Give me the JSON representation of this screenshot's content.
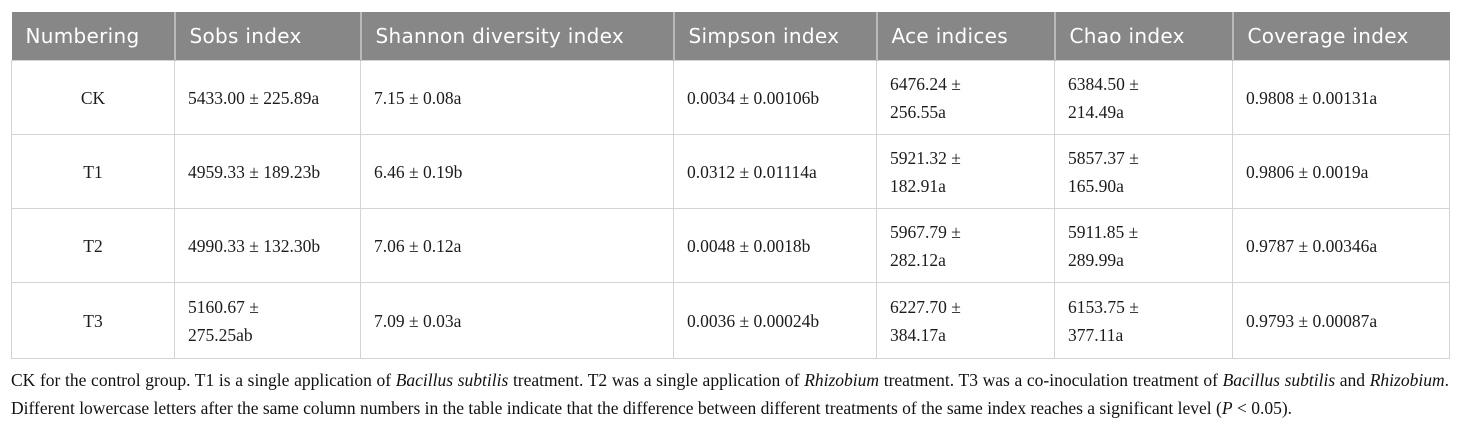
{
  "colors": {
    "header_bg": "#878787",
    "header_text": "#ffffff",
    "header_divider": "#b9b9b9",
    "body_border": "#d4d4d4",
    "body_text": "#1c1c1c"
  },
  "table": {
    "columns": [
      "Numbering",
      "Sobs index",
      "Shannon diversity index",
      "Simpson index",
      "Ace indices",
      "Chao index",
      "Coverage index"
    ],
    "rows": [
      {
        "cells": [
          "CK",
          "5433.00 ± 225.89a",
          "7.15 ± 0.08a",
          "0.0034 ± 0.00106b",
          [
            "6476.24 ±",
            "256.55a"
          ],
          [
            "6384.50 ±",
            "214.49a"
          ],
          "0.9808 ± 0.00131a"
        ]
      },
      {
        "cells": [
          "T1",
          "4959.33 ± 189.23b",
          "6.46 ± 0.19b",
          "0.0312 ± 0.01114a",
          [
            "5921.32 ±",
            "182.91a"
          ],
          [
            "5857.37 ±",
            "165.90a"
          ],
          "0.9806 ± 0.0019a"
        ]
      },
      {
        "cells": [
          "T2",
          "4990.33 ± 132.30b",
          "7.06 ± 0.12a",
          "0.0048 ± 0.0018b",
          [
            "5967.79 ±",
            "282.12a"
          ],
          [
            "5911.85 ±",
            "289.99a"
          ],
          "0.9787 ± 0.00346a"
        ]
      },
      {
        "cells": [
          "T3",
          [
            "5160.67 ±",
            "275.25ab"
          ],
          "7.09 ± 0.03a",
          "0.0036 ± 0.00024b",
          [
            "6227.70 ±",
            "384.17a"
          ],
          [
            "6153.75 ±",
            "377.11a"
          ],
          "0.9793 ± 0.00087a"
        ]
      }
    ]
  },
  "footnote": {
    "segments": [
      {
        "text": "CK for the control group. T1 is a single application of "
      },
      {
        "text": "Bacillus subtilis",
        "italic": true
      },
      {
        "text": " treatment. T2 was a single application of "
      },
      {
        "text": "Rhizobium",
        "italic": true
      },
      {
        "text": " treatment. T3 was a co-inoculation treatment of "
      },
      {
        "text": "Bacillus subtilis",
        "italic": true
      },
      {
        "text": " and "
      },
      {
        "text": "Rhizobium",
        "italic": true
      },
      {
        "text": ". Different lowercase letters after the same column numbers in the table indicate that the difference between different treatments of the same index reaches a significant level ("
      },
      {
        "text": "P",
        "italic": true
      },
      {
        "text": " < 0.05)."
      }
    ]
  }
}
